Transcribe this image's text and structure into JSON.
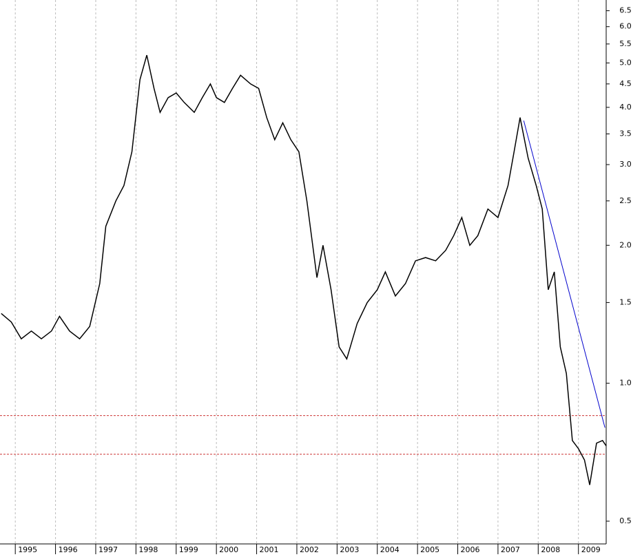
{
  "chart_data": {
    "type": "line",
    "log_scale": true,
    "grid": true,
    "x": [
      1994.65,
      1994.9,
      1995.15,
      1995.4,
      1995.65,
      1995.9,
      1996.1,
      1996.35,
      1996.6,
      1996.85,
      1997.1,
      1997.25,
      1997.5,
      1997.7,
      1997.9,
      1998.1,
      1998.27,
      1998.45,
      1998.6,
      1998.8,
      1999.0,
      1999.2,
      1999.45,
      1999.65,
      1999.85,
      2000.0,
      2000.2,
      2000.4,
      2000.6,
      2000.85,
      2001.05,
      2001.25,
      2001.45,
      2001.65,
      2001.85,
      2002.05,
      2002.25,
      2002.5,
      2002.65,
      2002.85,
      2003.05,
      2003.24,
      2003.5,
      2003.75,
      2004.0,
      2004.2,
      2004.45,
      2004.7,
      2004.95,
      2005.2,
      2005.45,
      2005.7,
      2005.9,
      2006.1,
      2006.3,
      2006.5,
      2006.75,
      2007.0,
      2007.25,
      2007.4,
      2007.55,
      2007.75,
      2007.95,
      2008.1,
      2008.25,
      2008.4,
      2008.55,
      2008.7,
      2008.85,
      2009.0,
      2009.15,
      2009.28,
      2009.45,
      2009.6,
      2009.69
    ],
    "series": [
      {
        "color": "#000000",
        "values": [
          1.42,
          1.36,
          1.25,
          1.3,
          1.25,
          1.3,
          1.4,
          1.3,
          1.25,
          1.33,
          1.65,
          2.2,
          2.5,
          2.7,
          3.2,
          4.6,
          5.2,
          4.4,
          3.9,
          4.2,
          4.3,
          4.1,
          3.9,
          4.2,
          4.5,
          4.2,
          4.1,
          4.4,
          4.7,
          4.5,
          4.4,
          3.8,
          3.4,
          3.7,
          3.4,
          3.2,
          2.5,
          1.7,
          2.0,
          1.6,
          1.2,
          1.13,
          1.35,
          1.5,
          1.6,
          1.75,
          1.55,
          1.65,
          1.85,
          1.88,
          1.85,
          1.95,
          2.1,
          2.3,
          2.0,
          2.1,
          2.4,
          2.3,
          2.7,
          3.2,
          3.8,
          3.1,
          2.7,
          2.4,
          1.6,
          1.75,
          1.2,
          1.05,
          0.75,
          0.72,
          0.68,
          0.6,
          0.74,
          0.75,
          0.73
        ]
      }
    ],
    "trendline": {
      "color": "#0000cc",
      "x": [
        2007.64,
        2009.66
      ],
      "values": [
        3.74,
        0.8
      ]
    },
    "hlines": {
      "color": "#cc3333",
      "values": [
        0.85,
        0.7
      ]
    },
    "xlim": [
      1994.62,
      2009.69
    ],
    "ylim": [
      0.446,
      6.86
    ],
    "xticks": [
      1995,
      1996,
      1997,
      1998,
      1999,
      2000,
      2001,
      2002,
      2003,
      2004,
      2005,
      2006,
      2007,
      2008,
      2009
    ],
    "yticks": [
      0.5,
      {
        "value": 1,
        "label": "1.0"
      },
      1.5,
      {
        "value": 2,
        "label": "2.0"
      },
      2.5,
      {
        "value": 3,
        "label": "3.0"
      },
      3.5,
      {
        "value": 4,
        "label": "4.0"
      },
      4.5,
      {
        "value": 5,
        "label": "5.0"
      },
      5.5,
      {
        "value": 6,
        "label": "6.0"
      },
      6.5
    ]
  }
}
